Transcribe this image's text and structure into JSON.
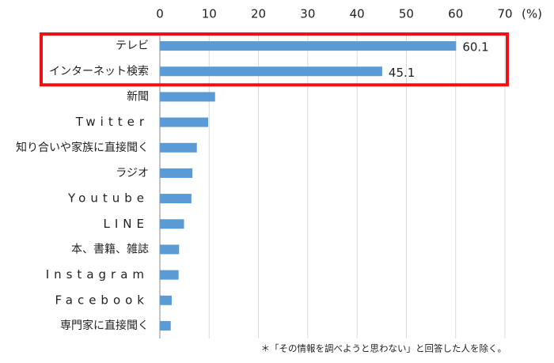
{
  "chart_data": {
    "type": "hbar",
    "categories": [
      "テレビ",
      "インターネット検索",
      "新聞",
      "Twitter",
      "知り合いや家族に直接聞く",
      "ラジオ",
      "Youtube",
      "LINE",
      "本、書籍、雑誌",
      "Instagram",
      "Facebook",
      "専門家に直接聞く"
    ],
    "values": [
      60.1,
      45.1,
      11.2,
      9.8,
      7.5,
      6.6,
      6.4,
      4.9,
      3.9,
      3.8,
      2.4,
      2.2
    ],
    "color": "#5b9bd5",
    "xlim": [
      0,
      70
    ],
    "xticks": [
      0,
      10,
      20,
      30,
      40,
      50,
      60,
      70
    ],
    "x_unit": "(%)",
    "grid": true,
    "highlight_rows": [
      0,
      1
    ],
    "highlight_color": "#ee1111",
    "footnote": "＊「その情報を調べようと思わない」と回答した人を除く。"
  }
}
